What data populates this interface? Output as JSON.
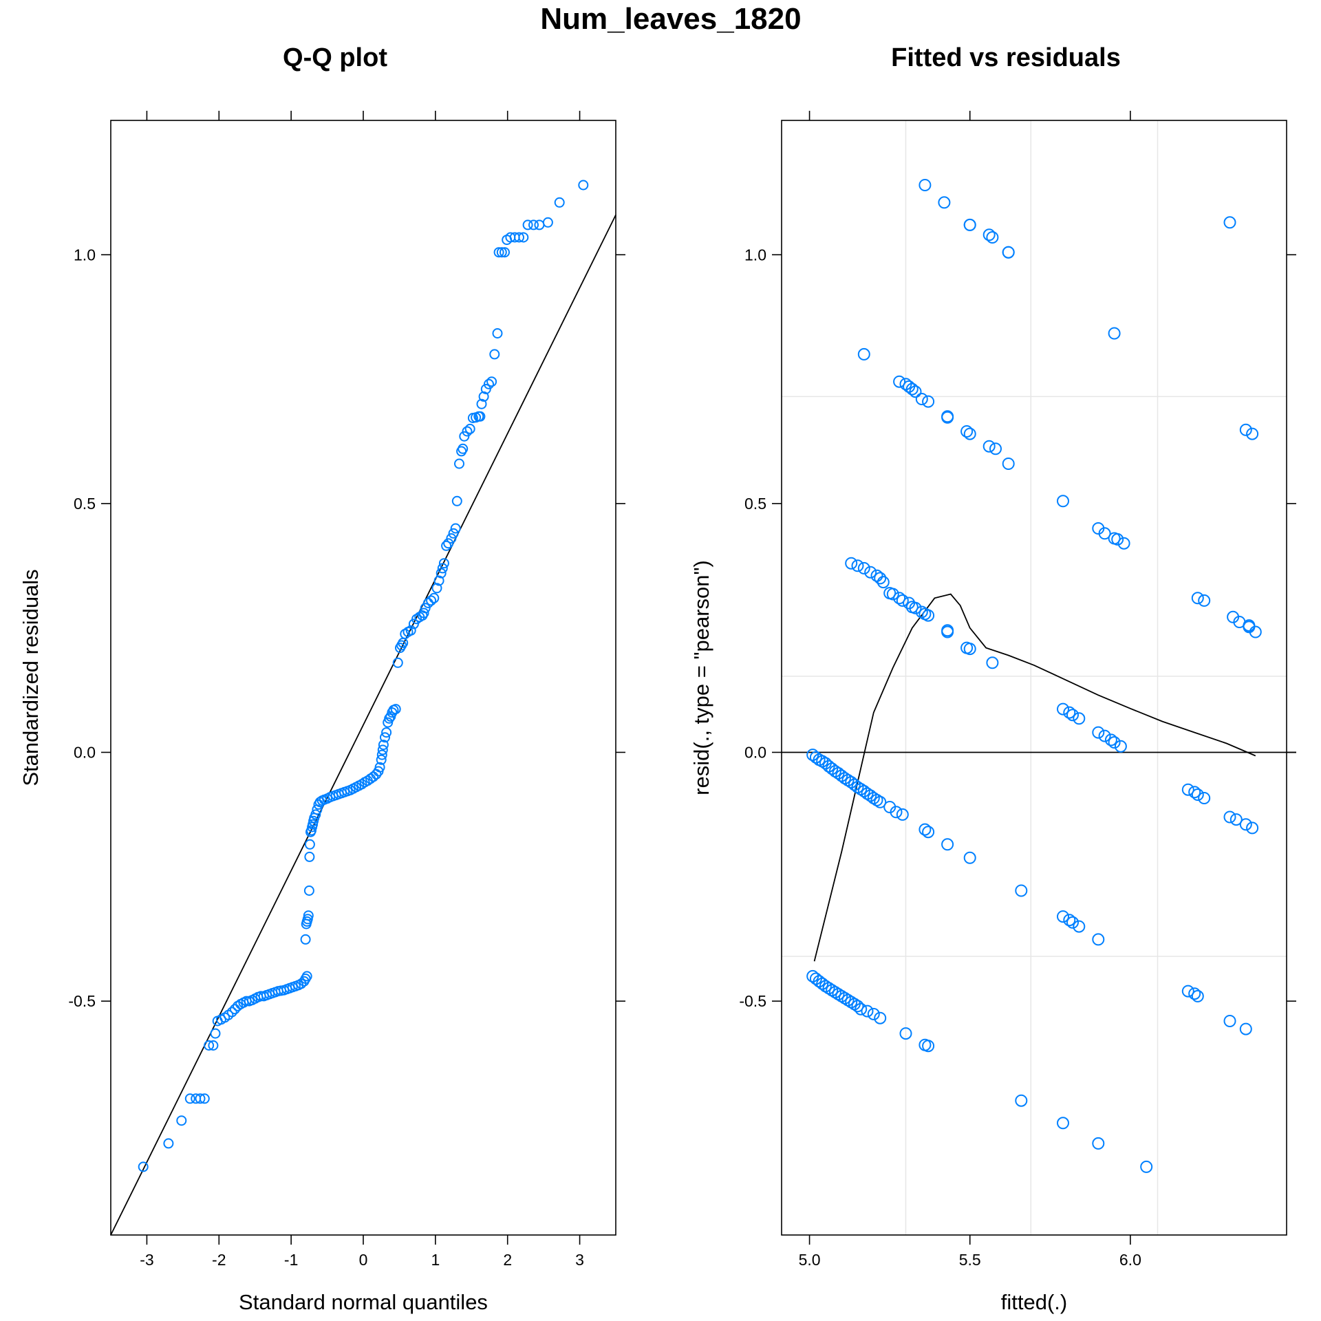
{
  "title": "Num_leaves_1820",
  "colors": {
    "points": "#0080ff",
    "lines": "#000000",
    "grid": "#e6e6e6"
  },
  "chart_data": [
    {
      "type": "scatter",
      "title": "Q-Q plot",
      "xlabel": "Standard normal quantiles",
      "ylabel": "Standardized residuals",
      "xlim": [
        -3.5,
        3.5
      ],
      "ylim": [
        -0.97,
        1.27
      ],
      "xticks": [
        -3,
        -2,
        -1,
        0,
        1,
        2,
        3
      ],
      "xtick_labels": [
        "-3",
        "-2",
        "-1",
        "0",
        "1",
        "2",
        "3"
      ],
      "yticks": [
        -0.5,
        0.0,
        0.5,
        1.0
      ],
      "ytick_labels": [
        "-0.5",
        "0.0",
        "0.5",
        "1.0"
      ],
      "reference_line": {
        "from": [
          -3.5,
          -0.97
        ],
        "to": [
          3.5,
          1.08
        ]
      },
      "points": [
        [
          -3.05,
          -0.833
        ],
        [
          -2.7,
          -0.786
        ],
        [
          -2.52,
          -0.74
        ],
        [
          -2.4,
          -0.696
        ],
        [
          -2.32,
          -0.696
        ],
        [
          -2.26,
          -0.696
        ],
        [
          -2.2,
          -0.696
        ],
        [
          -2.14,
          -0.589
        ],
        [
          -2.08,
          -0.589
        ],
        [
          -2.05,
          -0.565
        ],
        [
          -2.02,
          -0.54
        ],
        [
          -1.97,
          -0.537
        ],
        [
          -1.92,
          -0.533
        ],
        [
          -1.87,
          -0.528
        ],
        [
          -1.82,
          -0.522
        ],
        [
          -1.78,
          -0.516
        ],
        [
          -1.74,
          -0.51
        ],
        [
          -1.7,
          -0.506
        ],
        [
          -1.66,
          -0.503
        ],
        [
          -1.62,
          -0.5
        ],
        [
          -1.58,
          -0.5
        ],
        [
          -1.54,
          -0.498
        ],
        [
          -1.5,
          -0.495
        ],
        [
          -1.46,
          -0.492
        ],
        [
          -1.42,
          -0.49
        ],
        [
          -1.38,
          -0.49
        ],
        [
          -1.34,
          -0.488
        ],
        [
          -1.3,
          -0.486
        ],
        [
          -1.26,
          -0.484
        ],
        [
          -1.22,
          -0.482
        ],
        [
          -1.18,
          -0.48
        ],
        [
          -1.14,
          -0.479
        ],
        [
          -1.1,
          -0.478
        ],
        [
          -1.06,
          -0.476
        ],
        [
          -1.02,
          -0.474
        ],
        [
          -0.98,
          -0.472
        ],
        [
          -0.94,
          -0.47
        ],
        [
          -0.9,
          -0.468
        ],
        [
          -0.86,
          -0.465
        ],
        [
          -0.82,
          -0.46
        ],
        [
          -0.8,
          -0.455
        ],
        [
          -0.78,
          -0.45
        ],
        [
          -0.8,
          -0.376
        ],
        [
          -0.79,
          -0.345
        ],
        [
          -0.78,
          -0.34
        ],
        [
          -0.77,
          -0.335
        ],
        [
          -0.76,
          -0.328
        ],
        [
          -0.75,
          -0.278
        ],
        [
          -0.745,
          -0.21
        ],
        [
          -0.74,
          -0.185
        ],
        [
          -0.73,
          -0.16
        ],
        [
          -0.72,
          -0.157
        ],
        [
          -0.71,
          -0.15
        ],
        [
          -0.7,
          -0.145
        ],
        [
          -0.69,
          -0.138
        ],
        [
          -0.68,
          -0.132
        ],
        [
          -0.66,
          -0.125
        ],
        [
          -0.64,
          -0.115
        ],
        [
          -0.62,
          -0.105
        ],
        [
          -0.6,
          -0.1
        ],
        [
          -0.57,
          -0.097
        ],
        [
          -0.54,
          -0.095
        ],
        [
          -0.5,
          -0.093
        ],
        [
          -0.46,
          -0.09
        ],
        [
          -0.42,
          -0.088
        ],
        [
          -0.38,
          -0.086
        ],
        [
          -0.34,
          -0.084
        ],
        [
          -0.3,
          -0.082
        ],
        [
          -0.26,
          -0.08
        ],
        [
          -0.22,
          -0.078
        ],
        [
          -0.18,
          -0.076
        ],
        [
          -0.14,
          -0.073
        ],
        [
          -0.1,
          -0.07
        ],
        [
          -0.06,
          -0.067
        ],
        [
          -0.02,
          -0.064
        ],
        [
          0.02,
          -0.06
        ],
        [
          0.06,
          -0.057
        ],
        [
          0.1,
          -0.053
        ],
        [
          0.14,
          -0.049
        ],
        [
          0.18,
          -0.044
        ],
        [
          0.21,
          -0.038
        ],
        [
          0.23,
          -0.03
        ],
        [
          0.25,
          -0.015
        ],
        [
          0.26,
          -0.005
        ],
        [
          0.27,
          0.005
        ],
        [
          0.28,
          0.015
        ],
        [
          0.3,
          0.03
        ],
        [
          0.32,
          0.04
        ],
        [
          0.34,
          0.06
        ],
        [
          0.36,
          0.068
        ],
        [
          0.38,
          0.072
        ],
        [
          0.4,
          0.08
        ],
        [
          0.42,
          0.085
        ],
        [
          0.45,
          0.087
        ],
        [
          0.48,
          0.18
        ],
        [
          0.51,
          0.21
        ],
        [
          0.53,
          0.215
        ],
        [
          0.55,
          0.22
        ],
        [
          0.58,
          0.238
        ],
        [
          0.62,
          0.242
        ],
        [
          0.66,
          0.245
        ],
        [
          0.7,
          0.258
        ],
        [
          0.74,
          0.268
        ],
        [
          0.78,
          0.272
        ],
        [
          0.82,
          0.275
        ],
        [
          0.84,
          0.28
        ],
        [
          0.86,
          0.29
        ],
        [
          0.9,
          0.3
        ],
        [
          0.94,
          0.305
        ],
        [
          0.98,
          0.31
        ],
        [
          1.02,
          0.33
        ],
        [
          1.05,
          0.345
        ],
        [
          1.08,
          0.36
        ],
        [
          1.1,
          0.37
        ],
        [
          1.12,
          0.38
        ],
        [
          1.15,
          0.415
        ],
        [
          1.18,
          0.42
        ],
        [
          1.22,
          0.43
        ],
        [
          1.25,
          0.44
        ],
        [
          1.28,
          0.45
        ],
        [
          1.3,
          0.505
        ],
        [
          1.33,
          0.58
        ],
        [
          1.36,
          0.605
        ],
        [
          1.38,
          0.61
        ],
        [
          1.4,
          0.635
        ],
        [
          1.44,
          0.645
        ],
        [
          1.48,
          0.65
        ],
        [
          1.52,
          0.672
        ],
        [
          1.56,
          0.673
        ],
        [
          1.6,
          0.675
        ],
        [
          1.62,
          0.675
        ],
        [
          1.64,
          0.7
        ],
        [
          1.67,
          0.715
        ],
        [
          1.7,
          0.73
        ],
        [
          1.74,
          0.74
        ],
        [
          1.78,
          0.745
        ],
        [
          1.82,
          0.8
        ],
        [
          1.86,
          0.842
        ],
        [
          1.88,
          1.005
        ],
        [
          1.92,
          1.005
        ],
        [
          1.96,
          1.005
        ],
        [
          1.99,
          1.03
        ],
        [
          2.04,
          1.035
        ],
        [
          2.1,
          1.035
        ],
        [
          2.16,
          1.035
        ],
        [
          2.22,
          1.035
        ],
        [
          2.28,
          1.06
        ],
        [
          2.36,
          1.06
        ],
        [
          2.44,
          1.06
        ],
        [
          2.56,
          1.065
        ],
        [
          2.72,
          1.105
        ],
        [
          3.05,
          1.14
        ]
      ]
    },
    {
      "type": "scatter",
      "title": "Fitted vs residuals",
      "xlabel": "fitted(.)",
      "ylabel": "resid(., type = \"pearson\")",
      "xlim": [
        4.913,
        6.487
      ],
      "ylim": [
        -0.97,
        1.27
      ],
      "xticks": [
        5.0,
        5.5,
        6.0
      ],
      "xtick_labels": [
        "5.0",
        "5.5",
        "6.0"
      ],
      "yticks": [
        -0.5,
        0.0,
        0.5,
        1.0
      ],
      "ytick_labels": [
        "-0.5",
        "0.0",
        "0.5",
        "1.0"
      ],
      "grid_x": [
        5.3,
        5.69,
        6.085
      ],
      "grid_y": [
        -0.41,
        0.153,
        0.715
      ],
      "zero_line": 0.0,
      "smooth": [
        [
          5.015,
          -0.42
        ],
        [
          5.1,
          -0.2
        ],
        [
          5.2,
          0.08
        ],
        [
          5.26,
          0.17
        ],
        [
          5.32,
          0.25
        ],
        [
          5.39,
          0.31
        ],
        [
          5.44,
          0.318
        ],
        [
          5.47,
          0.295
        ],
        [
          5.5,
          0.25
        ],
        [
          5.55,
          0.21
        ],
        [
          5.62,
          0.195
        ],
        [
          5.7,
          0.175
        ],
        [
          5.8,
          0.145
        ],
        [
          5.9,
          0.115
        ],
        [
          6.0,
          0.088
        ],
        [
          6.1,
          0.062
        ],
        [
          6.2,
          0.04
        ],
        [
          6.3,
          0.018
        ],
        [
          6.39,
          -0.007
        ]
      ],
      "points": [
        [
          5.36,
          1.14
        ],
        [
          5.42,
          1.105
        ],
        [
          5.5,
          1.06
        ],
        [
          5.5,
          1.06
        ],
        [
          5.56,
          1.04
        ],
        [
          5.57,
          1.035
        ],
        [
          5.62,
          1.005
        ],
        [
          5.62,
          1.005
        ],
        [
          6.31,
          1.065
        ],
        [
          5.17,
          0.8
        ],
        [
          5.95,
          0.842
        ],
        [
          5.28,
          0.745
        ],
        [
          5.3,
          0.74
        ],
        [
          5.31,
          0.735
        ],
        [
          5.32,
          0.73
        ],
        [
          5.33,
          0.725
        ],
        [
          5.35,
          0.71
        ],
        [
          5.37,
          0.705
        ],
        [
          5.43,
          0.675
        ],
        [
          5.43,
          0.673
        ],
        [
          5.49,
          0.645
        ],
        [
          5.5,
          0.64
        ],
        [
          5.56,
          0.615
        ],
        [
          5.58,
          0.61
        ],
        [
          5.62,
          0.58
        ],
        [
          6.36,
          0.648
        ],
        [
          6.38,
          0.64
        ],
        [
          5.79,
          0.505
        ],
        [
          5.9,
          0.45
        ],
        [
          5.92,
          0.44
        ],
        [
          5.95,
          0.43
        ],
        [
          5.96,
          0.428
        ],
        [
          5.98,
          0.42
        ],
        [
          6.21,
          0.31
        ],
        [
          6.23,
          0.305
        ],
        [
          6.32,
          0.272
        ],
        [
          6.34,
          0.262
        ],
        [
          6.37,
          0.255
        ],
        [
          6.37,
          0.252
        ],
        [
          6.39,
          0.242
        ],
        [
          5.13,
          0.38
        ],
        [
          5.15,
          0.375
        ],
        [
          5.17,
          0.37
        ],
        [
          5.19,
          0.362
        ],
        [
          5.21,
          0.355
        ],
        [
          5.22,
          0.35
        ],
        [
          5.23,
          0.342
        ],
        [
          5.25,
          0.32
        ],
        [
          5.26,
          0.318
        ],
        [
          5.28,
          0.31
        ],
        [
          5.29,
          0.305
        ],
        [
          5.31,
          0.3
        ],
        [
          5.32,
          0.292
        ],
        [
          5.33,
          0.29
        ],
        [
          5.35,
          0.282
        ],
        [
          5.36,
          0.278
        ],
        [
          5.37,
          0.275
        ],
        [
          5.43,
          0.245
        ],
        [
          5.43,
          0.242
        ],
        [
          5.49,
          0.21
        ],
        [
          5.5,
          0.208
        ],
        [
          5.57,
          0.18
        ],
        [
          5.79,
          0.087
        ],
        [
          5.81,
          0.08
        ],
        [
          5.82,
          0.075
        ],
        [
          5.84,
          0.068
        ],
        [
          5.9,
          0.04
        ],
        [
          5.92,
          0.033
        ],
        [
          5.94,
          0.025
        ],
        [
          5.95,
          0.02
        ],
        [
          5.97,
          0.012
        ],
        [
          5.01,
          -0.005
        ],
        [
          5.02,
          -0.01
        ],
        [
          5.03,
          -0.015
        ],
        [
          5.04,
          -0.018
        ],
        [
          5.05,
          -0.022
        ],
        [
          5.06,
          -0.028
        ],
        [
          5.07,
          -0.033
        ],
        [
          5.08,
          -0.038
        ],
        [
          5.09,
          -0.042
        ],
        [
          5.1,
          -0.047
        ],
        [
          5.11,
          -0.052
        ],
        [
          5.12,
          -0.056
        ],
        [
          5.13,
          -0.06
        ],
        [
          5.14,
          -0.065
        ],
        [
          5.15,
          -0.07
        ],
        [
          5.16,
          -0.074
        ],
        [
          5.17,
          -0.078
        ],
        [
          5.18,
          -0.083
        ],
        [
          5.19,
          -0.087
        ],
        [
          5.2,
          -0.092
        ],
        [
          5.21,
          -0.096
        ],
        [
          5.22,
          -0.1
        ],
        [
          5.25,
          -0.11
        ],
        [
          5.27,
          -0.12
        ],
        [
          5.29,
          -0.125
        ],
        [
          5.36,
          -0.155
        ],
        [
          5.37,
          -0.16
        ],
        [
          5.43,
          -0.185
        ],
        [
          5.5,
          -0.212
        ],
        [
          5.66,
          -0.278
        ],
        [
          5.79,
          -0.33
        ],
        [
          5.81,
          -0.337
        ],
        [
          5.82,
          -0.342
        ],
        [
          5.84,
          -0.35
        ],
        [
          5.9,
          -0.376
        ],
        [
          6.18,
          -0.075
        ],
        [
          6.2,
          -0.08
        ],
        [
          6.21,
          -0.085
        ],
        [
          6.23,
          -0.092
        ],
        [
          6.31,
          -0.13
        ],
        [
          6.33,
          -0.135
        ],
        [
          6.36,
          -0.145
        ],
        [
          6.38,
          -0.152
        ],
        [
          5.01,
          -0.45
        ],
        [
          5.02,
          -0.455
        ],
        [
          5.03,
          -0.46
        ],
        [
          5.04,
          -0.465
        ],
        [
          5.05,
          -0.47
        ],
        [
          5.06,
          -0.474
        ],
        [
          5.07,
          -0.478
        ],
        [
          5.08,
          -0.482
        ],
        [
          5.09,
          -0.486
        ],
        [
          5.1,
          -0.49
        ],
        [
          5.11,
          -0.494
        ],
        [
          5.12,
          -0.498
        ],
        [
          5.13,
          -0.502
        ],
        [
          5.14,
          -0.506
        ],
        [
          5.15,
          -0.51
        ],
        [
          5.16,
          -0.516
        ],
        [
          5.18,
          -0.52
        ],
        [
          5.2,
          -0.526
        ],
        [
          5.22,
          -0.534
        ],
        [
          5.3,
          -0.565
        ],
        [
          5.36,
          -0.588
        ],
        [
          5.37,
          -0.59
        ],
        [
          5.66,
          -0.7
        ],
        [
          5.79,
          -0.745
        ],
        [
          5.9,
          -0.786
        ],
        [
          6.05,
          -0.833
        ],
        [
          6.18,
          -0.48
        ],
        [
          6.2,
          -0.485
        ],
        [
          6.21,
          -0.49
        ],
        [
          6.31,
          -0.54
        ],
        [
          6.36,
          -0.556
        ]
      ]
    }
  ]
}
